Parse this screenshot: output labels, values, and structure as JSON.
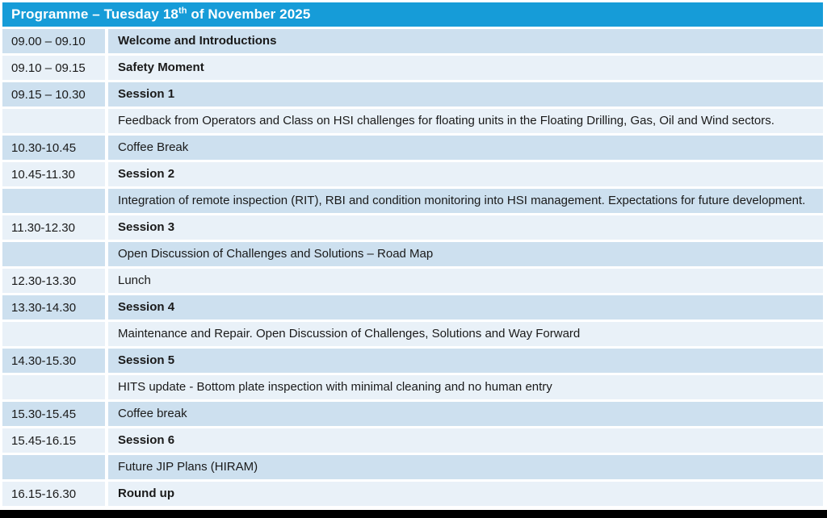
{
  "header": {
    "title_prefix": "Programme – Tuesday 18",
    "title_superscript": "th",
    "title_suffix": " of November 2025"
  },
  "colors": {
    "header_bg": "#169CD8",
    "row_dark": "#CDE0EF",
    "row_light": "#E9F1F8",
    "text": "#1A1A1A",
    "header_text": "#FFFFFF",
    "bottom_bar": "#000000"
  },
  "table": {
    "rows": [
      {
        "time": "09.00 – 09.10",
        "text": "Welcome and Introductions",
        "bold": true
      },
      {
        "time": "09.10 – 09.15",
        "text": "Safety Moment",
        "bold": true
      },
      {
        "time": "09.15 – 10.30",
        "text": "Session 1",
        "bold": true
      },
      {
        "time": "",
        "text": "Feedback from Operators and Class on HSI challenges for floating units in the Floating Drilling, Gas, Oil and Wind sectors.",
        "bold": false
      },
      {
        "time": "10.30-10.45",
        "text": "Coffee Break",
        "bold": false
      },
      {
        "time": "10.45-11.30",
        "text": "Session 2",
        "bold": true
      },
      {
        "time": "",
        "text": "Integration of remote inspection (RIT), RBI and condition monitoring into HSI management. Expectations for future development.",
        "bold": false
      },
      {
        "time": "11.30-12.30",
        "text": "Session 3",
        "bold": true
      },
      {
        "time": "",
        "text": "Open Discussion of Challenges and Solutions – Road Map",
        "bold": false
      },
      {
        "time": "12.30-13.30",
        "text": "Lunch",
        "bold": false
      },
      {
        "time": "13.30-14.30",
        "text": "Session 4",
        "bold": true
      },
      {
        "time": "",
        "text": "Maintenance and Repair. Open Discussion of Challenges, Solutions and Way Forward",
        "bold": false
      },
      {
        "time": "14.30-15.30",
        "text": "Session 5",
        "bold": true
      },
      {
        "time": "",
        "text": "HITS update - Bottom plate inspection with minimal cleaning and no human entry",
        "bold": false
      },
      {
        "time": "15.30-15.45",
        "text": "Coffee break",
        "bold": false
      },
      {
        "time": "15.45-16.15",
        "text": "Session 6",
        "bold": true
      },
      {
        "time": "",
        "text": "Future JIP Plans (HIRAM)",
        "bold": false
      },
      {
        "time": "16.15-16.30",
        "text": "Round up",
        "bold": true
      }
    ]
  }
}
